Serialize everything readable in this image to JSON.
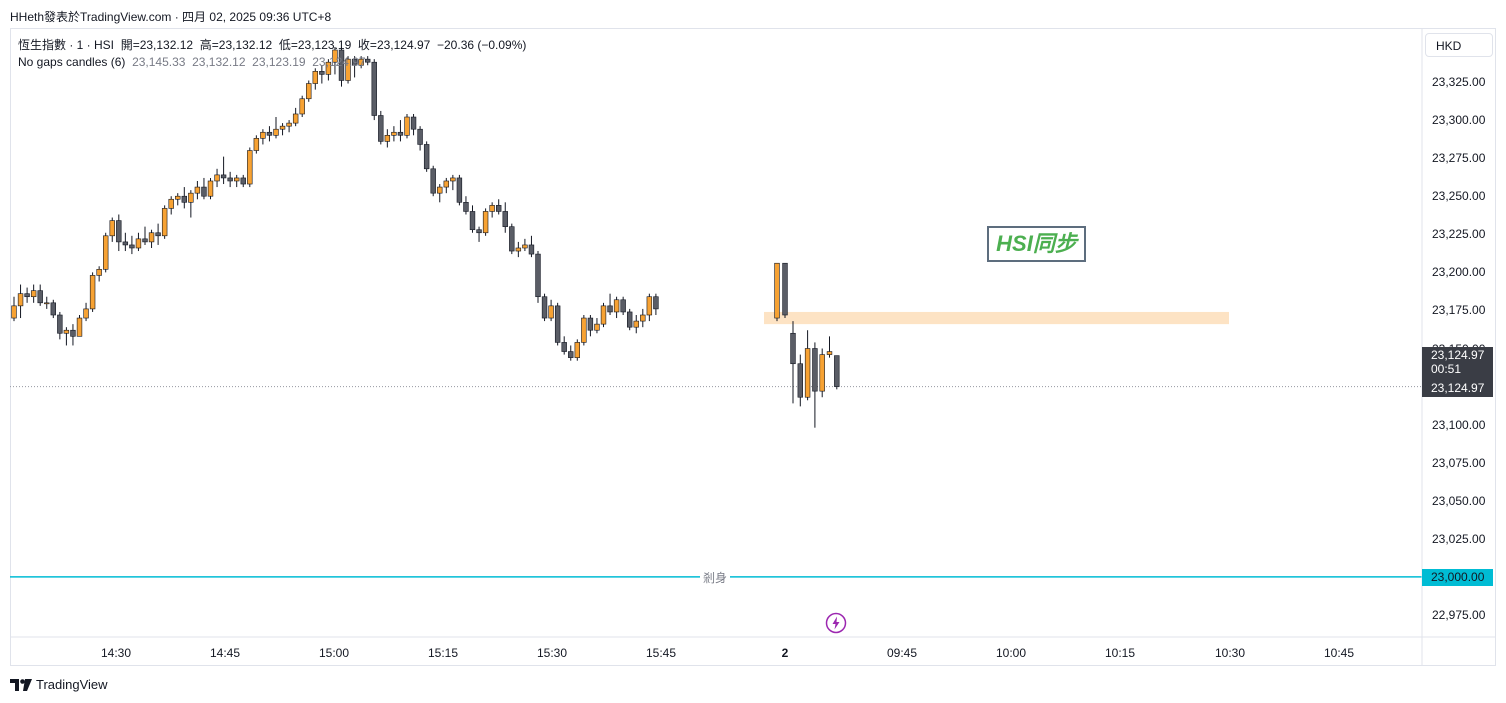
{
  "header": {
    "text": "HHeth發表於TradingView.com · 四月 02, 2025 09:36 UTC+8"
  },
  "legend": {
    "symbol": "恆生指數 · 1 · HSI",
    "open_label": "開=",
    "open": "23,132.12",
    "high_label": "高=",
    "high": "23,132.12",
    "low_label": "低=",
    "low": "23,123.19",
    "close_label": "收=",
    "close": "23,124.97",
    "change": "−20.36 (−0.09%)",
    "study_name": "No gaps candles (6)",
    "study_values": "23,145.33  23,132.12  23,123.19  23,124.97"
  },
  "currency": "HKD",
  "price_axis": {
    "labels": [
      "23,325.00",
      "23,300.00",
      "23,275.00",
      "23,250.00",
      "23,225.00",
      "23,200.00",
      "23,175.00",
      "23,150.00",
      "23,100.00",
      "23,075.00",
      "23,050.00",
      "23,025.00",
      "22,975.00"
    ],
    "last_price": "23,124.97",
    "countdown": "00:51",
    "last_price_line": "23,124.97",
    "hline_price": "23,000.00"
  },
  "time_axis": {
    "labels": [
      "14:30",
      "14:45",
      "15:00",
      "15:15",
      "15:30",
      "15:45",
      "2",
      "09:45",
      "10:00",
      "10:15",
      "10:30",
      "10:45"
    ],
    "bold_label": "2"
  },
  "annotations": {
    "text_box": "HSI同步",
    "hline_label": "剎身",
    "hline_color": "#00bcd4"
  },
  "colors": {
    "up": "#f7a233",
    "down": "#5a5d66",
    "zone": "#fde3c4",
    "last_tag": "#3a3d45",
    "text_green": "#4caf50"
  },
  "footer": {
    "brand": "TradingView"
  },
  "chart_data": {
    "type": "candlestick",
    "y_unit": "HKD",
    "ylim": [
      22962,
      23347
    ],
    "ohlc": [
      [
        23170,
        23184,
        23168,
        23178
      ],
      [
        23178,
        23192,
        23170,
        23186
      ],
      [
        23186,
        23190,
        23180,
        23184
      ],
      [
        23184,
        23192,
        23180,
        23188
      ],
      [
        23188,
        23192,
        23178,
        23180
      ],
      [
        23180,
        23184,
        23176,
        23180
      ],
      [
        23180,
        23182,
        23170,
        23172
      ],
      [
        23172,
        23174,
        23156,
        23160
      ],
      [
        23160,
        23164,
        23152,
        23162
      ],
      [
        23162,
        23166,
        23152,
        23158
      ],
      [
        23158,
        23172,
        23158,
        23170
      ],
      [
        23170,
        23180,
        23168,
        23176
      ],
      [
        23176,
        23200,
        23174,
        23198
      ],
      [
        23198,
        23204,
        23194,
        23202
      ],
      [
        23202,
        23226,
        23200,
        23224
      ],
      [
        23224,
        23236,
        23220,
        23234
      ],
      [
        23234,
        23238,
        23214,
        23220
      ],
      [
        23220,
        23226,
        23214,
        23218
      ],
      [
        23218,
        23224,
        23212,
        23216
      ],
      [
        23216,
        23226,
        23214,
        23222
      ],
      [
        23222,
        23230,
        23218,
        23220
      ],
      [
        23220,
        23228,
        23216,
        23226
      ],
      [
        23226,
        23232,
        23218,
        23224
      ],
      [
        23224,
        23244,
        23222,
        23242
      ],
      [
        23242,
        23250,
        23238,
        23248
      ],
      [
        23248,
        23252,
        23244,
        23250
      ],
      [
        23250,
        23256,
        23242,
        23246
      ],
      [
        23246,
        23254,
        23236,
        23252
      ],
      [
        23252,
        23260,
        23248,
        23256
      ],
      [
        23256,
        23262,
        23248,
        23250
      ],
      [
        23250,
        23262,
        23248,
        23260
      ],
      [
        23260,
        23268,
        23256,
        23264
      ],
      [
        23264,
        23276,
        23258,
        23262
      ],
      [
        23262,
        23266,
        23256,
        23260
      ],
      [
        23260,
        23264,
        23256,
        23262
      ],
      [
        23262,
        23264,
        23256,
        23258
      ],
      [
        23258,
        23282,
        23256,
        23280
      ],
      [
        23280,
        23290,
        23278,
        23288
      ],
      [
        23288,
        23294,
        23284,
        23292
      ],
      [
        23292,
        23296,
        23286,
        23290
      ],
      [
        23290,
        23302,
        23288,
        23294
      ],
      [
        23294,
        23298,
        23290,
        23296
      ],
      [
        23296,
        23300,
        23292,
        23298
      ],
      [
        23298,
        23308,
        23296,
        23304
      ],
      [
        23304,
        23316,
        23302,
        23314
      ],
      [
        23314,
        23326,
        23312,
        23324
      ],
      [
        23324,
        23334,
        23320,
        23332
      ],
      [
        23332,
        23336,
        23324,
        23330
      ],
      [
        23330,
        23340,
        23326,
        23338
      ],
      [
        23338,
        23348,
        23330,
        23346
      ],
      [
        23346,
        23348,
        23322,
        23326
      ],
      [
        23326,
        23342,
        23324,
        23340
      ],
      [
        23340,
        23342,
        23328,
        23336
      ],
      [
        23336,
        23342,
        23334,
        23340
      ],
      [
        23340,
        23342,
        23336,
        23338
      ],
      [
        23338,
        23340,
        23300,
        23303
      ],
      [
        23303,
        23306,
        23284,
        23286
      ],
      [
        23286,
        23294,
        23282,
        23290
      ],
      [
        23290,
        23296,
        23286,
        23292
      ],
      [
        23292,
        23300,
        23286,
        23290
      ],
      [
        23290,
        23304,
        23288,
        23302
      ],
      [
        23302,
        23304,
        23290,
        23294
      ],
      [
        23294,
        23296,
        23280,
        23284
      ],
      [
        23284,
        23286,
        23266,
        23268
      ],
      [
        23268,
        23270,
        23250,
        23252
      ],
      [
        23252,
        23258,
        23246,
        23256
      ],
      [
        23256,
        23262,
        23252,
        23260
      ],
      [
        23260,
        23264,
        23254,
        23262
      ],
      [
        23262,
        23264,
        23244,
        23246
      ],
      [
        23246,
        23250,
        23238,
        23240
      ],
      [
        23240,
        23244,
        23226,
        23228
      ],
      [
        23228,
        23230,
        23220,
        23226
      ],
      [
        23226,
        23242,
        23224,
        23240
      ],
      [
        23240,
        23246,
        23236,
        23244
      ],
      [
        23244,
        23248,
        23238,
        23240
      ],
      [
        23240,
        23246,
        23226,
        23230
      ],
      [
        23230,
        23232,
        23212,
        23214
      ],
      [
        23214,
        23220,
        23210,
        23216
      ],
      [
        23216,
        23222,
        23214,
        23218
      ],
      [
        23218,
        23224,
        23210,
        23212
      ],
      [
        23212,
        23214,
        23180,
        23184
      ],
      [
        23184,
        23186,
        23168,
        23170
      ],
      [
        23170,
        23182,
        23168,
        23178
      ],
      [
        23178,
        23180,
        23152,
        23154
      ],
      [
        23154,
        23158,
        23146,
        23148
      ],
      [
        23148,
        23152,
        23142,
        23144
      ],
      [
        23144,
        23156,
        23142,
        23154
      ],
      [
        23154,
        23172,
        23152,
        23170
      ],
      [
        23170,
        23172,
        23158,
        23162
      ],
      [
        23162,
        23170,
        23160,
        23166
      ],
      [
        23166,
        23180,
        23164,
        23178
      ],
      [
        23178,
        23186,
        23172,
        23174
      ],
      [
        23174,
        23184,
        23170,
        23182
      ],
      [
        23182,
        23184,
        23172,
        23174
      ],
      [
        23174,
        23176,
        23162,
        23164
      ],
      [
        23164,
        23172,
        23160,
        23168
      ],
      [
        23168,
        23176,
        23164,
        23172
      ],
      [
        23172,
        23186,
        23168,
        23184
      ],
      [
        23184,
        23186,
        23172,
        23176
      ],
      [
        23170,
        23206,
        23168,
        23206
      ],
      [
        23206,
        23206,
        23170,
        23172
      ],
      [
        23160,
        23168,
        23114,
        23140
      ],
      [
        23140,
        23146,
        23112,
        23118
      ],
      [
        23118,
        23162,
        23116,
        23150
      ],
      [
        23150,
        23154,
        23098,
        23122
      ],
      [
        23122,
        23150,
        23118,
        23146
      ],
      [
        23146,
        23158,
        23144,
        23148
      ],
      [
        23145.33,
        23145.33,
        23123.19,
        23124.97
      ]
    ],
    "zone": {
      "from": 23166,
      "to": 23174
    },
    "horizontal_line": {
      "price": 23000,
      "label": "剎身"
    },
    "last_price": 23124.97
  }
}
